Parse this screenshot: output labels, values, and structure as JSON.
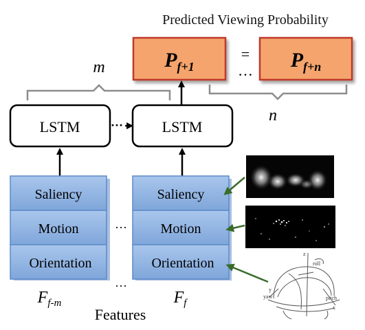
{
  "header": {
    "title": "Predicted Viewing Probability"
  },
  "prediction": {
    "left_label": "P",
    "left_sub": "f+1",
    "right_label": "P",
    "right_sub": "f+n",
    "equals": "=",
    "dots": "…"
  },
  "brackets": {
    "m_label": "m",
    "n_label": "n"
  },
  "lstm": {
    "left_label": "LSTM",
    "right_label": "LSTM",
    "dots": "···"
  },
  "features": {
    "left_stack": [
      "Saliency",
      "Motion",
      "Orientation"
    ],
    "right_stack": [
      "Saliency",
      "Motion",
      "Orientation"
    ],
    "mid_dots_top": "···",
    "mid_dots_bottom": "···",
    "left_caption_main": "F",
    "left_caption_sub": "f-m",
    "right_caption_main": "F",
    "right_caption_sub": "f",
    "caption": "Features"
  },
  "orientation_sketch": {
    "labels": [
      "z",
      "roll",
      "y",
      "yaw",
      "pitch",
      "x"
    ]
  },
  "colors": {
    "prediction_fill": "#f4a46c",
    "prediction_border": "#c0392b",
    "feature_fill": "#8fb4e3",
    "feature_border": "#5b8ac8",
    "bracket": "#8c8c8c",
    "arrow_green": "#3a6b2a"
  }
}
